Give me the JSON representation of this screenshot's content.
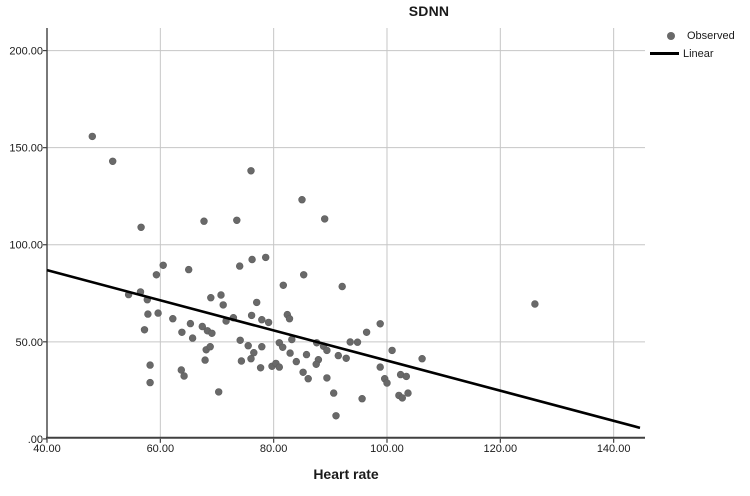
{
  "title": "SDNN",
  "x_axis_label": "Heart rate",
  "legend": {
    "observed": "Observed",
    "linear": "Linear"
  },
  "colors": {
    "background": "#ffffff",
    "gridline": "#c6c6c6",
    "axis": "#404040",
    "text": "#1a1a1a",
    "marker": "#696969",
    "trend": "#000000"
  },
  "chart_data": {
    "type": "scatter",
    "title": "SDNN",
    "xlabel": "Heart rate",
    "ylabel": "",
    "xlim": [
      40,
      144.65
    ],
    "ylim": [
      0,
      210.6
    ],
    "grid": true,
    "legend_position": "top-right-outside",
    "x_ticks": {
      "values": [
        40,
        60,
        80,
        100,
        120,
        140
      ],
      "labels": [
        "40.00",
        "60.00",
        "80.00",
        "100.00",
        "120.00",
        "140.00"
      ]
    },
    "y_ticks": {
      "values": [
        0,
        50,
        100,
        150,
        200
      ],
      "labels": [
        ".00",
        "50.00",
        "100.00",
        "150.00",
        "200.00"
      ]
    },
    "series": [
      {
        "name": "Observed",
        "kind": "scatter",
        "marker_color": "#696969",
        "points": [
          [
            48.0,
            155.8
          ],
          [
            51.6,
            143.0
          ],
          [
            56.6,
            109.0
          ],
          [
            67.7,
            112.1
          ],
          [
            73.5,
            112.6
          ],
          [
            76.0,
            138.1
          ],
          [
            85.0,
            123.2
          ],
          [
            89.0,
            113.3
          ],
          [
            60.5,
            89.4
          ],
          [
            59.3,
            84.5
          ],
          [
            65.0,
            87.2
          ],
          [
            74.0,
            89.0
          ],
          [
            76.2,
            92.4
          ],
          [
            78.6,
            93.5
          ],
          [
            85.3,
            84.5
          ],
          [
            81.7,
            79.1
          ],
          [
            92.1,
            78.5
          ],
          [
            68.9,
            72.7
          ],
          [
            70.7,
            74.1
          ],
          [
            71.1,
            69.0
          ],
          [
            54.4,
            74.3
          ],
          [
            56.5,
            75.7
          ],
          [
            57.7,
            71.7
          ],
          [
            77.0,
            70.3
          ],
          [
            76.1,
            63.6
          ],
          [
            77.9,
            61.4
          ],
          [
            79.1,
            60.0
          ],
          [
            82.4,
            64.0
          ],
          [
            82.8,
            61.9
          ],
          [
            57.8,
            64.3
          ],
          [
            59.6,
            64.8
          ],
          [
            62.2,
            61.9
          ],
          [
            65.3,
            59.4
          ],
          [
            63.8,
            54.9
          ],
          [
            65.7,
            51.9
          ],
          [
            57.2,
            56.2
          ],
          [
            67.4,
            57.9
          ],
          [
            68.3,
            55.7
          ],
          [
            69.1,
            54.4
          ],
          [
            71.6,
            60.7
          ],
          [
            72.9,
            62.4
          ],
          [
            74.1,
            50.8
          ],
          [
            98.8,
            59.3
          ],
          [
            96.4,
            54.9
          ],
          [
            94.8,
            49.8
          ],
          [
            93.5,
            49.9
          ],
          [
            100.9,
            45.6
          ],
          [
            106.2,
            41.3
          ],
          [
            126.1,
            69.5
          ],
          [
            75.5,
            48.0
          ],
          [
            76.5,
            44.4
          ],
          [
            77.9,
            47.5
          ],
          [
            81.0,
            49.5
          ],
          [
            81.6,
            47.2
          ],
          [
            83.2,
            51.2
          ],
          [
            82.9,
            44.2
          ],
          [
            85.8,
            43.4
          ],
          [
            87.6,
            49.5
          ],
          [
            88.8,
            47.7
          ],
          [
            89.4,
            45.6
          ],
          [
            91.4,
            42.9
          ],
          [
            92.8,
            41.5
          ],
          [
            58.2,
            38.0
          ],
          [
            58.2,
            29.0
          ],
          [
            63.7,
            35.5
          ],
          [
            64.2,
            32.4
          ],
          [
            67.9,
            40.6
          ],
          [
            68.1,
            45.9
          ],
          [
            68.8,
            47.5
          ],
          [
            70.3,
            24.2
          ],
          [
            74.3,
            40.1
          ],
          [
            76.0,
            41.3
          ],
          [
            77.7,
            36.6
          ],
          [
            79.7,
            37.4
          ],
          [
            80.4,
            38.9
          ],
          [
            81.0,
            37.0
          ],
          [
            84.0,
            39.8
          ],
          [
            85.2,
            34.3
          ],
          [
            86.1,
            31.0
          ],
          [
            87.9,
            40.8
          ],
          [
            87.5,
            38.4
          ],
          [
            89.4,
            31.4
          ],
          [
            90.6,
            23.6
          ],
          [
            91.0,
            11.9
          ],
          [
            95.6,
            20.7
          ],
          [
            98.8,
            37.0
          ],
          [
            99.6,
            31.0
          ],
          [
            100.0,
            28.8
          ],
          [
            102.4,
            33.1
          ],
          [
            103.4,
            32.2
          ],
          [
            102.1,
            22.4
          ],
          [
            102.7,
            21.1
          ],
          [
            103.7,
            23.6
          ]
        ]
      },
      {
        "name": "Linear",
        "kind": "line",
        "line_color": "#000000",
        "endpoints": [
          [
            40,
            86.9
          ],
          [
            144.65,
            5.7
          ]
        ]
      }
    ]
  }
}
